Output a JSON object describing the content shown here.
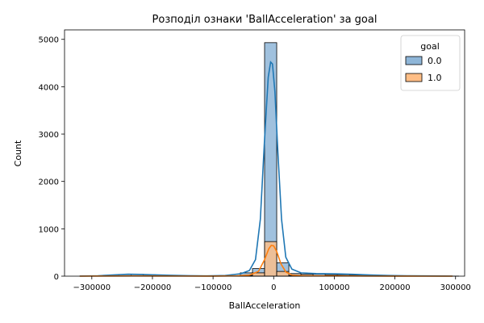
{
  "chart_data": {
    "type": "histogram",
    "title": "Розподіл ознаки 'BallAcceleration' за goal",
    "xlabel": "BallAcceleration",
    "ylabel": "Count",
    "xlim": [
      -345000,
      315000
    ],
    "ylim": [
      0,
      5200
    ],
    "x_ticks": [
      -300000,
      -200000,
      -100000,
      0,
      100000,
      200000,
      300000
    ],
    "x_tick_labels": [
      "−300000",
      "−200000",
      "−100000",
      "0",
      "100000",
      "200000",
      "300000"
    ],
    "y_ticks": [
      0,
      1000,
      2000,
      3000,
      4000,
      5000
    ],
    "y_tick_labels": [
      "0",
      "1000",
      "2000",
      "3000",
      "4000",
      "5000"
    ],
    "grid": false,
    "legend": {
      "title": "goal",
      "placement": "top-right"
    },
    "bin_edges": [
      -315000,
      -295000,
      -275000,
      -255000,
      -235000,
      -215000,
      -195000,
      -175000,
      -155000,
      -135000,
      -115000,
      -95000,
      -75000,
      -55000,
      -35000,
      -15000,
      5000,
      25000,
      45000,
      65000,
      85000,
      105000,
      125000,
      145000,
      165000,
      185000,
      205000,
      225000,
      245000,
      265000,
      285000,
      305000
    ],
    "series": [
      {
        "name": "0.0",
        "color": "#1f77b4",
        "fill": "#8fb6d8",
        "counts": [
          2,
          5,
          15,
          35,
          40,
          30,
          20,
          15,
          10,
          5,
          3,
          5,
          10,
          70,
          160,
          4930,
          280,
          55,
          40,
          45,
          30,
          30,
          25,
          15,
          12,
          8,
          5,
          3,
          2,
          3,
          2
        ],
        "kde": [
          [
            -320000,
            2
          ],
          [
            -290000,
            8
          ],
          [
            -260000,
            30
          ],
          [
            -240000,
            42
          ],
          [
            -220000,
            38
          ],
          [
            -200000,
            28
          ],
          [
            -170000,
            18
          ],
          [
            -140000,
            10
          ],
          [
            -110000,
            6
          ],
          [
            -80000,
            15
          ],
          [
            -55000,
            50
          ],
          [
            -40000,
            120
          ],
          [
            -30000,
            350
          ],
          [
            -22000,
            1200
          ],
          [
            -15000,
            2900
          ],
          [
            -9000,
            4200
          ],
          [
            -5000,
            4520
          ],
          [
            -2000,
            4480
          ],
          [
            2000,
            3900
          ],
          [
            7000,
            2600
          ],
          [
            13000,
            1200
          ],
          [
            20000,
            400
          ],
          [
            30000,
            150
          ],
          [
            45000,
            70
          ],
          [
            70000,
            55
          ],
          [
            100000,
            50
          ],
          [
            130000,
            40
          ],
          [
            160000,
            25
          ],
          [
            190000,
            15
          ],
          [
            220000,
            8
          ],
          [
            250000,
            5
          ],
          [
            280000,
            3
          ],
          [
            295000,
            2
          ]
        ]
      },
      {
        "name": "1.0",
        "color": "#ff7f0e",
        "fill": "#ffbe86",
        "counts": [
          0,
          1,
          3,
          5,
          6,
          4,
          3,
          2,
          1,
          1,
          1,
          1,
          3,
          15,
          70,
          730,
          100,
          12,
          8,
          7,
          5,
          4,
          3,
          2,
          1,
          1,
          0,
          0,
          0,
          0,
          0
        ],
        "kde": [
          [
            -320000,
            0
          ],
          [
            -270000,
            3
          ],
          [
            -230000,
            6
          ],
          [
            -190000,
            4
          ],
          [
            -150000,
            2
          ],
          [
            -100000,
            1
          ],
          [
            -60000,
            8
          ],
          [
            -40000,
            25
          ],
          [
            -25000,
            100
          ],
          [
            -15000,
            350
          ],
          [
            -8000,
            580
          ],
          [
            -4000,
            650
          ],
          [
            0,
            640
          ],
          [
            5000,
            520
          ],
          [
            12000,
            260
          ],
          [
            20000,
            90
          ],
          [
            30000,
            25
          ],
          [
            50000,
            10
          ],
          [
            80000,
            8
          ],
          [
            120000,
            5
          ],
          [
            160000,
            2
          ],
          [
            200000,
            1
          ],
          [
            250000,
            0
          ],
          [
            295000,
            0
          ]
        ]
      }
    ]
  }
}
